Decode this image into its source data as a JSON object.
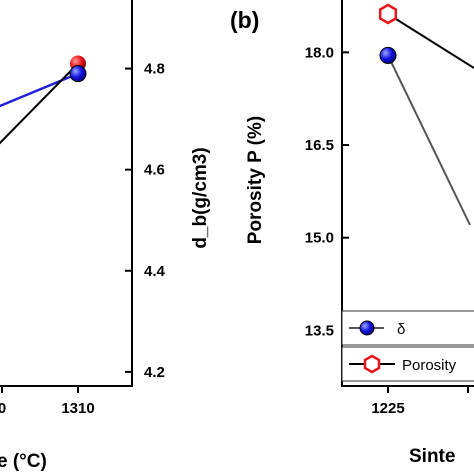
{
  "chart_data": [
    {
      "panel": "a",
      "type": "line",
      "x_ticks_visible": [
        "0",
        "1310"
      ],
      "xlabel_fragment": "e (°C)",
      "ylabel_right": "d_b(g/cm3)",
      "y_right_ticks": [
        "4.2",
        "4.4",
        "4.6",
        "4.8"
      ],
      "ylim_right": [
        4.18,
        4.9
      ],
      "series": [
        {
          "color": "#1f1fd6",
          "marker": "circle",
          "points": [
            {
              "x": 1310,
              "y": 4.79
            }
          ]
        },
        {
          "color": "#000000",
          "marker": "circle",
          "points": [
            {
              "x": 1310,
              "y": 4.81
            }
          ]
        }
      ],
      "marker_colors": {
        "blue": "#1010e0",
        "red": "#e8141b"
      }
    },
    {
      "panel": "b",
      "type": "line",
      "panel_label": "(b)",
      "x_ticks_visible": [
        "1225"
      ],
      "xlabel_fragment": "Sinte",
      "ylabel": "Porosity P (%)",
      "y_ticks": [
        "13.5",
        "15.0",
        "16.5",
        "18.0"
      ],
      "ylim": [
        12.6,
        18.75
      ],
      "series": [
        {
          "name": "δ",
          "color": "#555555",
          "marker": "circle",
          "points": [
            {
              "x": 1225,
              "y": 17.95
            }
          ]
        },
        {
          "name": "Porosity",
          "color": "#000000",
          "marker": "hexagon",
          "points": [
            {
              "x": 1225,
              "y": 18.62
            }
          ]
        }
      ],
      "legend": [
        "δ",
        "Porosity"
      ],
      "legend_position": "bottom-left"
    }
  ]
}
